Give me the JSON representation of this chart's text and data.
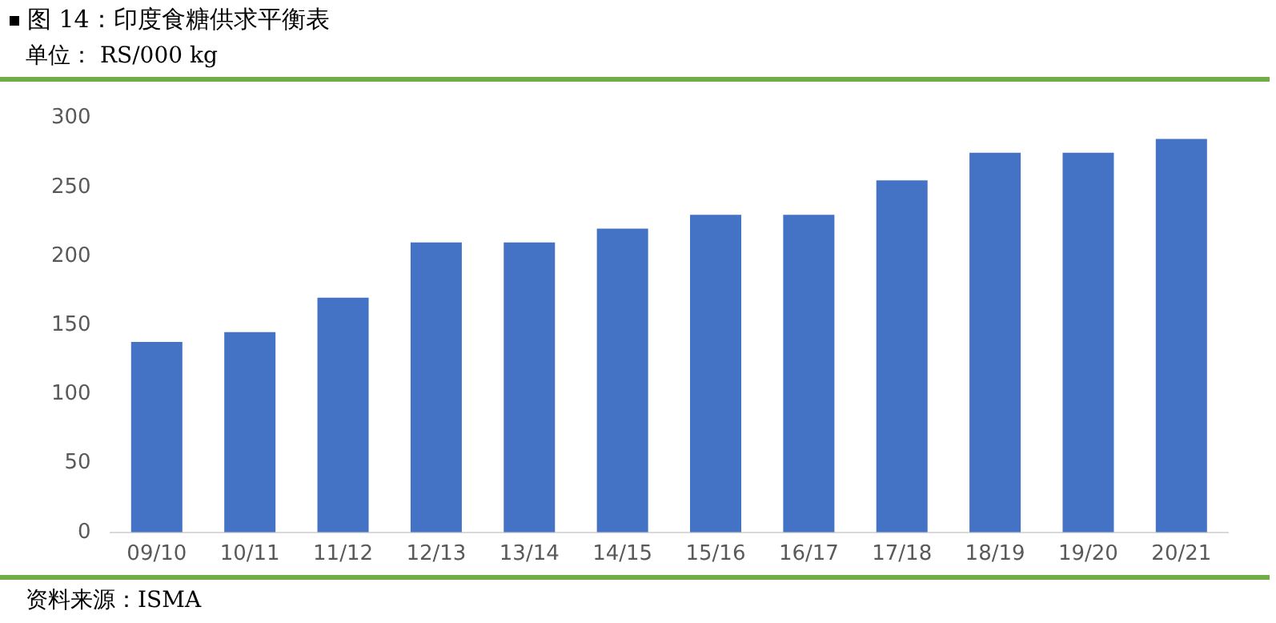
{
  "chart_data": {
    "type": "bar",
    "title": "图 14：印度食糖供求平衡表",
    "subtitle": "单位： RS/000 kg",
    "categories": [
      "09/10",
      "10/11",
      "11/12",
      "12/13",
      "13/14",
      "14/15",
      "15/16",
      "16/17",
      "17/18",
      "18/19",
      "19/20",
      "20/21"
    ],
    "values": [
      138,
      145,
      170,
      210,
      210,
      220,
      230,
      230,
      255,
      275,
      275,
      285
    ],
    "color": "#4472c4",
    "ylim": [
      0,
      300
    ],
    "yticks": [
      0,
      50,
      100,
      150,
      200,
      250,
      300
    ],
    "grid": false,
    "legend": false,
    "annotations": [
      "资料来源：ISMA"
    ]
  }
}
